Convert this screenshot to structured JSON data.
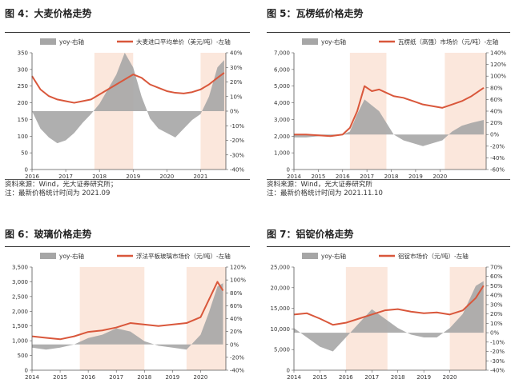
{
  "charts": [
    {
      "title": "图 4：大麦价格走势",
      "legend": {
        "yoy": "yoy-右轴",
        "price": "大麦进口平均单价（美元/吨）-左轴"
      },
      "source": "资料来源：Wind，光大证券研究所；",
      "note": "注：最新价格统计时间为 2021.09"
    },
    {
      "title": "图 5：瓦楞纸价格走势",
      "legend": {
        "yoy": "yoy-右轴",
        "price": "瓦楞纸（高强）市场价（元/吨）-左轴"
      },
      "source": "资料来源：Wind，光大证券研究所",
      "note": "注：最新价格统计时间为 2021.11.10"
    },
    {
      "title": "图 6：玻璃价格走势",
      "legend": {
        "yoy": "yoy-右轴",
        "price": "浮法平板玻璃市场价（元/吨）-左轴"
      },
      "source": "",
      "note": ""
    },
    {
      "title": "图 7：铝锭价格走势",
      "legend": {
        "yoy": "yoy-右轴",
        "price": "铝锭市场价（元/吨）-左轴"
      },
      "source": "",
      "note": ""
    }
  ],
  "colors": {
    "price": "#d9573b",
    "yoy": "#a6a6a6",
    "highlight": "#fbe7dc",
    "axis": "#555555"
  },
  "chart_data": [
    {
      "type": "line",
      "title": "",
      "series": [
        {
          "name": "yoy-右轴",
          "axis": "right",
          "kind": "area",
          "x": [
            2016.0,
            2016.25,
            2016.5,
            2016.75,
            2017.0,
            2017.25,
            2017.5,
            2017.75,
            2018.0,
            2018.25,
            2018.5,
            2018.75,
            2019.0,
            2019.25,
            2019.5,
            2019.75,
            2020.0,
            2020.25,
            2020.5,
            2020.75,
            2021.0,
            2021.25,
            2021.5,
            2021.7
          ],
          "values": [
            0,
            -12,
            -18,
            -22,
            -20,
            -15,
            -8,
            -2,
            5,
            15,
            25,
            40,
            30,
            10,
            -5,
            -12,
            -15,
            -18,
            -12,
            -6,
            -2,
            10,
            30,
            35
          ]
        },
        {
          "name": "大麦进口平均单价（美元/吨）-左轴",
          "axis": "left",
          "kind": "line",
          "x": [
            2016.0,
            2016.25,
            2016.5,
            2016.75,
            2017.0,
            2017.25,
            2017.5,
            2017.75,
            2018.0,
            2018.25,
            2018.5,
            2018.75,
            2019.0,
            2019.25,
            2019.5,
            2019.75,
            2020.0,
            2020.25,
            2020.5,
            2020.75,
            2021.0,
            2021.25,
            2021.5,
            2021.7
          ],
          "values": [
            280,
            240,
            220,
            210,
            205,
            200,
            205,
            210,
            225,
            240,
            255,
            270,
            285,
            275,
            255,
            245,
            235,
            230,
            228,
            232,
            240,
            255,
            275,
            290
          ]
        }
      ],
      "x_ticks": [
        "2016",
        "2017",
        "2018",
        "2019",
        "2020",
        "2021"
      ],
      "xlim": [
        2016,
        2021.75
      ],
      "ylim_left": [
        0,
        350
      ],
      "yticks_left": [
        "0",
        "50",
        "100",
        "150",
        "200",
        "250",
        "300",
        "350"
      ],
      "ylim_right": [
        -40,
        40
      ],
      "yticks_right": [
        "-40%",
        "-30%",
        "-20%",
        "-10%",
        "0%",
        "10%",
        "20%",
        "30%",
        "40%"
      ],
      "highlights": [
        [
          2017.85,
          2019.0
        ],
        [
          2021.0,
          2021.75
        ]
      ],
      "legend_position": "top"
    },
    {
      "type": "line",
      "title": "",
      "series": [
        {
          "name": "yoy-右轴",
          "axis": "right",
          "kind": "area",
          "x": [
            2014.0,
            2014.5,
            2015.0,
            2015.5,
            2016.0,
            2016.3,
            2016.6,
            2016.9,
            2017.2,
            2017.5,
            2017.8,
            2018.1,
            2018.5,
            2018.9,
            2019.3,
            2019.7,
            2020.1,
            2020.5,
            2020.9,
            2021.3,
            2021.8
          ],
          "values": [
            -5,
            -5,
            -3,
            -2,
            0,
            5,
            35,
            60,
            50,
            40,
            20,
            0,
            -10,
            -15,
            -20,
            -15,
            -10,
            5,
            15,
            20,
            25
          ]
        },
        {
          "name": "瓦楞纸（高强）市场价（元/吨）-左轴",
          "axis": "left",
          "kind": "line",
          "x": [
            2014.0,
            2014.5,
            2015.0,
            2015.5,
            2016.0,
            2016.3,
            2016.6,
            2016.9,
            2017.2,
            2017.5,
            2017.8,
            2018.1,
            2018.5,
            2018.9,
            2019.3,
            2019.7,
            2020.1,
            2020.5,
            2020.9,
            2021.3,
            2021.8
          ],
          "values": [
            2100,
            2100,
            2050,
            2000,
            2100,
            2500,
            3500,
            5000,
            4700,
            4800,
            4600,
            4400,
            4300,
            4100,
            3900,
            3800,
            3700,
            3900,
            4100,
            4400,
            4900
          ]
        }
      ],
      "x_ticks": [
        "2014",
        "2015",
        "2016",
        "2017",
        "2018",
        "2019",
        "2020"
      ],
      "xlim": [
        2014,
        2021.9
      ],
      "ylim_left": [
        0,
        7000
      ],
      "yticks_left": [
        "0",
        "1,000",
        "2,000",
        "3,000",
        "4,000",
        "5,000",
        "6,000",
        "7,000"
      ],
      "ylim_right": [
        -60,
        140
      ],
      "yticks_right": [
        "-60%",
        "-40%",
        "-20%",
        "0%",
        "20%",
        "40%",
        "60%",
        "80%",
        "100%",
        "120%",
        "140%"
      ],
      "highlights": [
        [
          2016.3,
          2017.8
        ],
        [
          2020.2,
          2021.9
        ]
      ],
      "legend_position": "top"
    },
    {
      "type": "line",
      "title": "",
      "series": [
        {
          "name": "yoy-右轴",
          "axis": "right",
          "kind": "area",
          "x": [
            2014.0,
            2014.5,
            2015.0,
            2015.5,
            2016.0,
            2016.5,
            2017.0,
            2017.5,
            2018.0,
            2018.5,
            2019.0,
            2019.5,
            2020.0,
            2020.3,
            2020.6,
            2020.8
          ],
          "values": [
            -5,
            -8,
            -5,
            0,
            10,
            15,
            25,
            20,
            5,
            -2,
            -5,
            -8,
            15,
            50,
            90,
            95
          ]
        },
        {
          "name": "浮法平板玻璃市场价（元/吨）-左轴",
          "axis": "left",
          "kind": "line",
          "x": [
            2014.0,
            2014.5,
            2015.0,
            2015.5,
            2016.0,
            2016.5,
            2017.0,
            2017.5,
            2018.0,
            2018.5,
            2019.0,
            2019.5,
            2020.0,
            2020.3,
            2020.6,
            2020.8
          ],
          "values": [
            1150,
            1100,
            1050,
            1150,
            1300,
            1350,
            1450,
            1600,
            1550,
            1500,
            1550,
            1600,
            1800,
            2400,
            3000,
            2700
          ]
        }
      ],
      "x_ticks": [
        "2014",
        "2015",
        "2016",
        "2017",
        "2018",
        "2019",
        "2020"
      ],
      "xlim": [
        2014,
        2020.9
      ],
      "ylim_left": [
        0,
        3500
      ],
      "yticks_left": [
        "0",
        "500",
        "1,000",
        "1,500",
        "2,000",
        "2,500",
        "3,000",
        "3,500"
      ],
      "ylim_right": [
        -40,
        120
      ],
      "yticks_right": [
        "-40%",
        "-20%",
        "0%",
        "20%",
        "40%",
        "60%",
        "80%",
        "100%",
        "120%"
      ],
      "highlights": [
        [
          2015.7,
          2018.0
        ],
        [
          2019.5,
          2020.9
        ]
      ],
      "legend_position": "top"
    },
    {
      "type": "line",
      "title": "",
      "series": [
        {
          "name": "yoy-右轴",
          "axis": "right",
          "kind": "area",
          "x": [
            2014.0,
            2014.5,
            2015.0,
            2015.5,
            2016.0,
            2016.5,
            2017.0,
            2017.5,
            2018.0,
            2018.5,
            2019.0,
            2019.5,
            2020.0,
            2020.5,
            2021.0,
            2021.3
          ],
          "values": [
            5,
            -5,
            -15,
            -20,
            -5,
            10,
            25,
            15,
            5,
            -2,
            -5,
            -5,
            5,
            20,
            50,
            55
          ]
        },
        {
          "name": "铝锭市场价（元/吨）-左轴",
          "axis": "left",
          "kind": "line",
          "x": [
            2014.0,
            2014.5,
            2015.0,
            2015.5,
            2016.0,
            2016.5,
            2017.0,
            2017.5,
            2018.0,
            2018.5,
            2019.0,
            2019.5,
            2020.0,
            2020.5,
            2021.0,
            2021.3
          ],
          "values": [
            13500,
            13800,
            12500,
            11000,
            11500,
            12500,
            13500,
            14500,
            14800,
            14200,
            13800,
            14000,
            13500,
            14500,
            17500,
            20500
          ]
        }
      ],
      "x_ticks": [
        "2014",
        "2015",
        "2016",
        "2017",
        "2018",
        "2019",
        "2020"
      ],
      "xlim": [
        2014,
        2021.4
      ],
      "ylim_left": [
        0,
        25000
      ],
      "yticks_left": [
        "0",
        "5,000",
        "10,000",
        "15,000",
        "20,000",
        "25,000"
      ],
      "ylim_right": [
        -40,
        70
      ],
      "yticks_right": [
        "-40%",
        "-30%",
        "-20%",
        "-10%",
        "0%",
        "10%",
        "20%",
        "30%",
        "40%",
        "50%",
        "60%",
        "70%"
      ],
      "highlights": [
        [
          2016.0,
          2017.6
        ],
        [
          2020.0,
          2021.4
        ]
      ],
      "legend_position": "top"
    }
  ]
}
